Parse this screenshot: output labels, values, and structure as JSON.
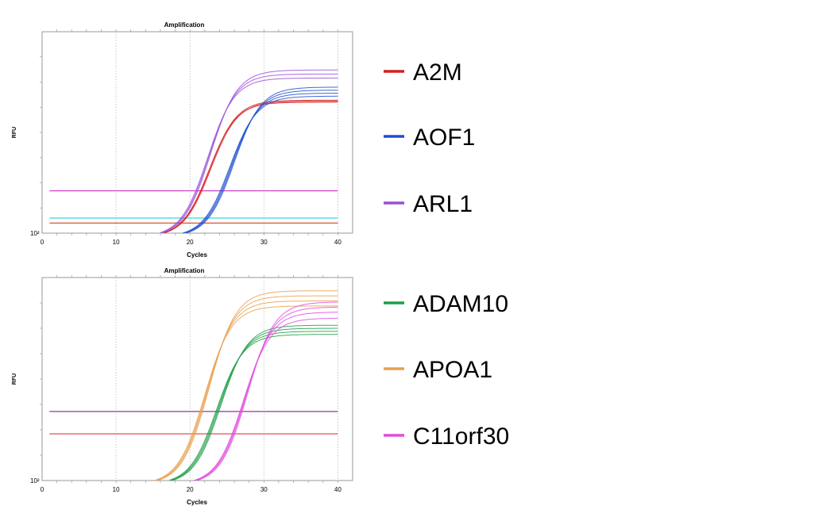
{
  "chart_data": [
    {
      "type": "line",
      "title": "Amplification",
      "xlabel": "Cycles",
      "ylabel": "RFU",
      "xlim": [
        0,
        42
      ],
      "x_ticks": [
        0,
        10,
        20,
        30,
        40
      ],
      "y_tick_label": "10²",
      "y_scale": "log",
      "grid": "vertical-dotted",
      "legend_placement": "right",
      "series": [
        {
          "name": "A2M",
          "color": "#d42020",
          "curves": [
            {
              "ct": 22.6,
              "plateau": 0.67
            },
            {
              "ct": 22.8,
              "plateau": 0.675
            },
            {
              "ct": 22.7,
              "plateau": 0.68
            }
          ]
        },
        {
          "name": "AOF1",
          "color": "#1f4fd0",
          "curves": [
            {
              "ct": 25.4,
              "plateau": 0.7
            },
            {
              "ct": 25.6,
              "plateau": 0.715
            },
            {
              "ct": 25.8,
              "plateau": 0.73
            },
            {
              "ct": 26.0,
              "plateau": 0.745
            }
          ]
        },
        {
          "name": "ARL1",
          "color": "#9a4fd8",
          "curves": [
            {
              "ct": 22.4,
              "plateau": 0.79
            },
            {
              "ct": 22.6,
              "plateau": 0.81
            },
            {
              "ct": 22.8,
              "plateau": 0.83
            }
          ]
        }
      ],
      "thresholds": [
        {
          "color": "#cc44cc",
          "level": 0.21
        },
        {
          "color": "#44dddd",
          "level": 0.075
        },
        {
          "color": "#e06040",
          "level": 0.05
        }
      ]
    },
    {
      "type": "line",
      "title": "Amplification",
      "xlabel": "Cycles",
      "ylabel": "RFU",
      "xlim": [
        0,
        42
      ],
      "x_ticks": [
        0,
        10,
        20,
        30,
        40
      ],
      "y_tick_label": "10²",
      "y_scale": "log",
      "grid": "vertical-dotted",
      "legend_placement": "right",
      "series": [
        {
          "name": "ADAM10",
          "color": "#1e9e48",
          "curves": [
            {
              "ct": 23.6,
              "plateau": 0.74
            },
            {
              "ct": 23.8,
              "plateau": 0.755
            },
            {
              "ct": 24.0,
              "plateau": 0.77
            },
            {
              "ct": 24.2,
              "plateau": 0.785
            }
          ]
        },
        {
          "name": "APOA1",
          "color": "#e8a050",
          "curves": [
            {
              "ct": 22.0,
              "plateau": 0.88
            },
            {
              "ct": 22.2,
              "plateau": 0.905
            },
            {
              "ct": 22.4,
              "plateau": 0.93
            },
            {
              "ct": 22.6,
              "plateau": 0.955
            }
          ]
        },
        {
          "name": "C11orf30",
          "color": "#e04ce0",
          "curves": [
            {
              "ct": 27.2,
              "plateau": 0.82
            },
            {
              "ct": 27.4,
              "plateau": 0.85
            },
            {
              "ct": 27.6,
              "plateau": 0.875
            },
            {
              "ct": 27.8,
              "plateau": 0.9
            }
          ]
        }
      ],
      "thresholds": [
        {
          "color": "#a040b0",
          "level": 0.34
        },
        {
          "color": "#e05050",
          "level": 0.23
        }
      ]
    }
  ]
}
